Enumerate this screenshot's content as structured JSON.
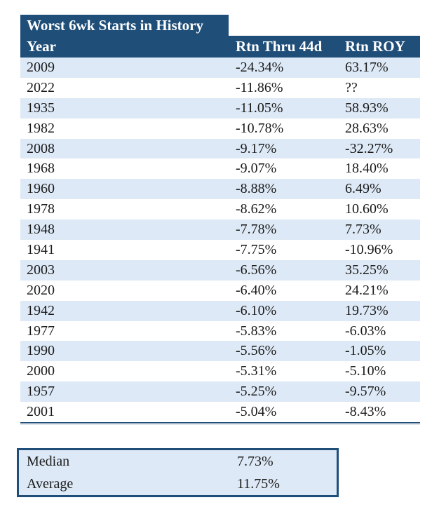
{
  "title": "Worst 6wk Starts in History",
  "columns": {
    "year": "Year",
    "rtn_thru_44d": "Rtn Thru 44d",
    "rtn_roy": "Rtn ROY"
  },
  "rows": [
    {
      "year": "2009",
      "rtn": "-24.34%",
      "roy": "63.17%"
    },
    {
      "year": "2022",
      "rtn": "-11.86%",
      "roy": "??"
    },
    {
      "year": "1935",
      "rtn": "-11.05%",
      "roy": "58.93%"
    },
    {
      "year": "1982",
      "rtn": "-10.78%",
      "roy": "28.63%"
    },
    {
      "year": "2008",
      "rtn": "-9.17%",
      "roy": "-32.27%"
    },
    {
      "year": "1968",
      "rtn": "-9.07%",
      "roy": "18.40%"
    },
    {
      "year": "1960",
      "rtn": "-8.88%",
      "roy": "6.49%"
    },
    {
      "year": "1978",
      "rtn": "-8.62%",
      "roy": "10.60%"
    },
    {
      "year": "1948",
      "rtn": "-7.78%",
      "roy": "7.73%"
    },
    {
      "year": "1941",
      "rtn": "-7.75%",
      "roy": "-10.96%"
    },
    {
      "year": "2003",
      "rtn": "-6.56%",
      "roy": "35.25%"
    },
    {
      "year": "2020",
      "rtn": "-6.40%",
      "roy": "24.21%"
    },
    {
      "year": "1942",
      "rtn": "-6.10%",
      "roy": "19.73%"
    },
    {
      "year": "1977",
      "rtn": "-5.83%",
      "roy": "-6.03%"
    },
    {
      "year": "1990",
      "rtn": "-5.56%",
      "roy": "-1.05%"
    },
    {
      "year": "2000",
      "rtn": "-5.31%",
      "roy": "-5.10%"
    },
    {
      "year": "1957",
      "rtn": "-5.25%",
      "roy": "-9.57%"
    },
    {
      "year": "2001",
      "rtn": "-5.04%",
      "roy": "-8.43%"
    }
  ],
  "summary": [
    {
      "label": "Median",
      "value": "7.73%"
    },
    {
      "label": "Average",
      "value": "11.75%"
    }
  ],
  "colors": {
    "header_bg": "#1f4e79",
    "band_bg": "#dde9f6"
  }
}
